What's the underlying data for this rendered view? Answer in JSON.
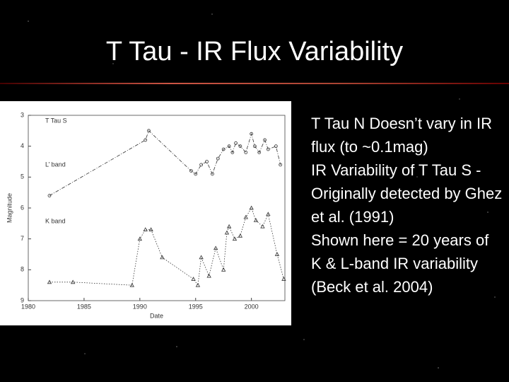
{
  "title": "T Tau - IR Flux Variability",
  "bullets": [
    "T Tau N Doesn’t vary in IR flux (to ~0.1mag)",
    "IR Variability of T Tau S - Originally detected by Ghez et al. (1991)",
    "Shown here = 20 years of K & L-band IR variability (Beck et al. 2004)"
  ],
  "figure": {
    "type": "line",
    "x_label": "Date",
    "y_label": "Magnitude",
    "panel_label": "T Tau S",
    "xlim": [
      1980,
      2003
    ],
    "xticks": [
      1980,
      1985,
      1990,
      1995,
      2000
    ],
    "ylim": [
      3,
      9
    ],
    "yticks": [
      3,
      4,
      5,
      6,
      7,
      8,
      9
    ],
    "y_inverted": true,
    "series": [
      {
        "name": "L’ band",
        "color": "#333333",
        "x": [
          1981.9,
          1990.5,
          1990.8,
          1994.6,
          1995,
          1995.5,
          1996,
          1996.5,
          1997,
          1997.5,
          1998,
          1998.3,
          1998.6,
          1999,
          1999.5,
          2000,
          2000.3,
          2000.7,
          2001.2,
          2001.5,
          2002.2,
          2002.6
        ],
        "values": [
          5.6,
          3.8,
          3.5,
          4.8,
          4.9,
          4.6,
          4.5,
          4.9,
          4.4,
          4.1,
          4.0,
          4.2,
          3.9,
          4.0,
          4.2,
          3.6,
          4.0,
          4.2,
          3.8,
          4.1,
          4.0,
          4.6
        ]
      },
      {
        "name": "K band",
        "color": "#333333",
        "x": [
          1981.9,
          1984,
          1989.3,
          1990,
          1990.5,
          1991,
          1992,
          1994.8,
          1995.2,
          1995.5,
          1996.2,
          1996.8,
          1997.5,
          1997.8,
          1998,
          1998.5,
          1999,
          1999.5,
          2000,
          2000.4,
          2001,
          2001.5,
          2002.3,
          2002.9
        ],
        "values": [
          8.4,
          8.4,
          8.5,
          7.0,
          6.7,
          6.7,
          7.6,
          8.3,
          8.5,
          7.6,
          8.2,
          7.3,
          8.0,
          6.8,
          6.6,
          7.0,
          6.9,
          6.3,
          6.0,
          6.4,
          6.6,
          6.2,
          7.5,
          8.3
        ]
      }
    ]
  }
}
